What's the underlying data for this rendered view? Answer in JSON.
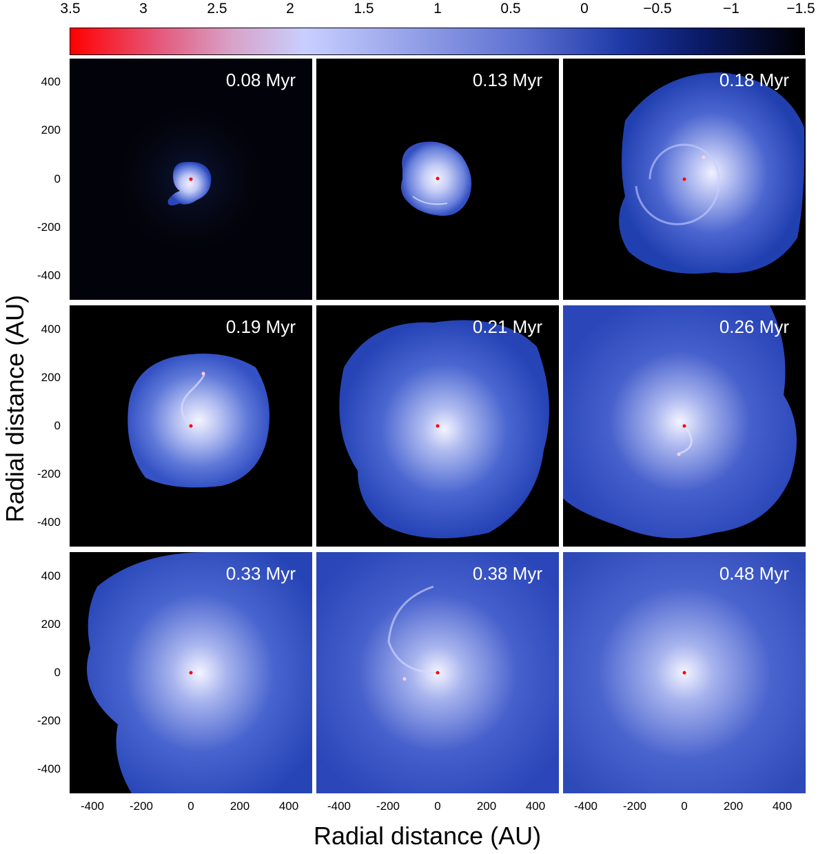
{
  "colorbar": {
    "labels": [
      "3.5",
      "3",
      "2.5",
      "2",
      "1.5",
      "1",
      "0.5",
      "0",
      "−0.5",
      "−1",
      "−1.5"
    ],
    "values": [
      3.5,
      3,
      2.5,
      2,
      1.5,
      1,
      0.5,
      0,
      -0.5,
      -1,
      -1.5
    ],
    "range": [
      3.5,
      -1.5
    ],
    "colors": {
      "high": "#ff0000",
      "mid": "#c8cfff",
      "low": "#000000"
    }
  },
  "axes": {
    "xlabel": "Radial distance (AU)",
    "ylabel": "Radial distance (AU)",
    "ticks": [
      "-400",
      "-200",
      "0",
      "200",
      "400"
    ],
    "range": [
      -500,
      500
    ]
  },
  "panels": [
    {
      "time": "0.08 Myr"
    },
    {
      "time": "0.13 Myr"
    },
    {
      "time": "0.18 Myr"
    },
    {
      "time": "0.19 Myr"
    },
    {
      "time": "0.21 Myr"
    },
    {
      "time": "0.26 Myr"
    },
    {
      "time": "0.33 Myr"
    },
    {
      "time": "0.38 Myr"
    },
    {
      "time": "0.48 Myr"
    }
  ]
}
